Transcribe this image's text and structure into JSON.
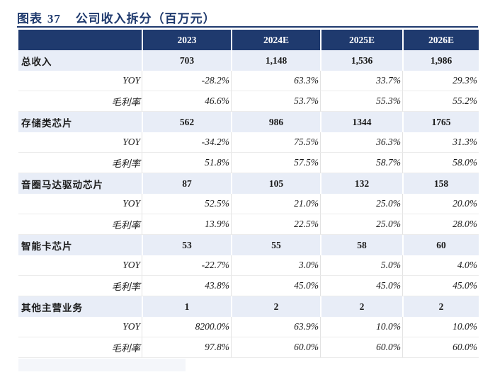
{
  "title": {
    "label": "图表",
    "number": "37",
    "text": "公司收入拆分（百万元）"
  },
  "table": {
    "headers": [
      "",
      "2023",
      "2024E",
      "2025E",
      "2026E"
    ],
    "rows": [
      {
        "kind": "main",
        "label": "总收入",
        "values": [
          "703",
          "1,148",
          "1,536",
          "1,986"
        ]
      },
      {
        "kind": "sub",
        "label": "YOY",
        "values": [
          "-28.2%",
          "63.3%",
          "33.7%",
          "29.3%"
        ]
      },
      {
        "kind": "sub",
        "label": "毛利率",
        "values": [
          "46.6%",
          "53.7%",
          "55.3%",
          "55.2%"
        ]
      },
      {
        "kind": "main",
        "label": "存储类芯片",
        "values": [
          "562",
          "986",
          "1344",
          "1765"
        ]
      },
      {
        "kind": "sub",
        "label": "YOY",
        "values": [
          "-34.2%",
          "75.5%",
          "36.3%",
          "31.3%"
        ]
      },
      {
        "kind": "sub",
        "label": "毛利率",
        "values": [
          "51.8%",
          "57.5%",
          "58.7%",
          "58.0%"
        ]
      },
      {
        "kind": "main",
        "label": "音圈马达驱动芯片",
        "values": [
          "87",
          "105",
          "132",
          "158"
        ]
      },
      {
        "kind": "sub",
        "label": "YOY",
        "values": [
          "52.5%",
          "21.0%",
          "25.0%",
          "20.0%"
        ]
      },
      {
        "kind": "sub",
        "label": "毛利率",
        "values": [
          "13.9%",
          "22.5%",
          "25.0%",
          "28.0%"
        ]
      },
      {
        "kind": "main",
        "label": "智能卡芯片",
        "values": [
          "53",
          "55",
          "58",
          "60"
        ]
      },
      {
        "kind": "sub",
        "label": "YOY",
        "values": [
          "-22.7%",
          "3.0%",
          "5.0%",
          "4.0%"
        ]
      },
      {
        "kind": "sub",
        "label": "毛利率",
        "values": [
          "43.8%",
          "45.0%",
          "45.0%",
          "45.0%"
        ]
      },
      {
        "kind": "main",
        "label": "其他主营业务",
        "values": [
          "1",
          "2",
          "2",
          "2"
        ]
      },
      {
        "kind": "sub",
        "label": "YOY",
        "values": [
          "8200.0%",
          "63.9%",
          "10.0%",
          "10.0%"
        ]
      },
      {
        "kind": "sub",
        "label": "毛利率",
        "values": [
          "97.8%",
          "60.0%",
          "60.0%",
          "60.0%"
        ]
      }
    ]
  },
  "colors": {
    "header_bg": "#1f3a6e",
    "main_row_bg": "#e8edf7",
    "title": "#1f3a6e"
  }
}
